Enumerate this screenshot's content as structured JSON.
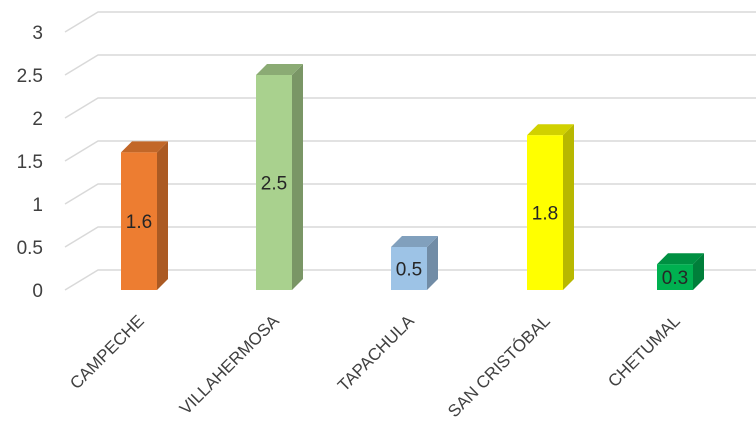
{
  "chart_data": {
    "type": "bar",
    "style": "3d-column",
    "title": "",
    "xlabel": "",
    "ylabel": "",
    "ylim": [
      0,
      3
    ],
    "yticks": [
      "0",
      "0.5",
      "1",
      "1.5",
      "2",
      "2.5",
      "3"
    ],
    "grid": true,
    "legend": "none",
    "categories": [
      "CAMPECHE",
      "VILLAHERMOSA",
      "TAPACHULA",
      "SAN CRISTÓBAL",
      "CHETUMAL"
    ],
    "values": [
      1.6,
      2.5,
      0.5,
      1.8,
      0.3
    ],
    "data_labels": [
      "1.6",
      "2.5",
      "0.5",
      "1.8",
      "0.3"
    ],
    "colors": [
      "#ED7D31",
      "#A9D18E",
      "#9DC3E6",
      "#FFFF00",
      "#00B050"
    ]
  }
}
